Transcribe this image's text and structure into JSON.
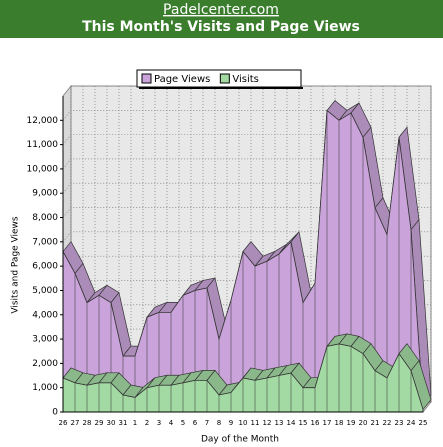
{
  "header": {
    "site": "Padelcenter.com"
  },
  "chart_data": {
    "type": "area3d",
    "title": "This Month's Visits and Page Views",
    "x_label": "Day of the Month",
    "y_label": "Visits and Page Views",
    "categories": [
      "26",
      "27",
      "28",
      "29",
      "30",
      "31",
      "1",
      "2",
      "3",
      "4",
      "5",
      "6",
      "7",
      "8",
      "9",
      "10",
      "11",
      "12",
      "13",
      "14",
      "15",
      "16",
      "17",
      "18",
      "19",
      "20",
      "21",
      "22",
      "23",
      "24",
      "25"
    ],
    "series": [
      {
        "name": "Page Views",
        "color": "#c9a3d9",
        "values": [
          6600,
          5700,
          4500,
          4800,
          4500,
          2300,
          2300,
          3900,
          4100,
          4100,
          4800,
          5000,
          5100,
          3000,
          4600,
          6600,
          6000,
          6200,
          6500,
          7000,
          4500,
          5300,
          12400,
          12000,
          12300,
          11300,
          8400,
          7300,
          11300,
          7500,
          300
        ]
      },
      {
        "name": "Visits",
        "color": "#a3d9a3",
        "values": [
          1400,
          1200,
          1100,
          1200,
          1200,
          700,
          600,
          1000,
          1100,
          1100,
          1200,
          1300,
          1300,
          700,
          800,
          1400,
          1300,
          1400,
          1500,
          1600,
          1000,
          1000,
          2700,
          2800,
          2700,
          2400,
          1700,
          1400,
          2400,
          1700,
          100
        ]
      }
    ],
    "ylim": [
      0,
      13000
    ],
    "yticks": [
      0,
      {
        "value": 1000,
        "label": "1,000"
      },
      {
        "value": 2000,
        "label": "2,000"
      },
      {
        "value": 3000,
        "label": "3,000"
      },
      {
        "value": 4000,
        "label": "4,000"
      },
      {
        "value": 5000,
        "label": "5,000"
      },
      {
        "value": 6000,
        "label": "6,000"
      },
      {
        "value": 7000,
        "label": "7,000"
      },
      {
        "value": 8000,
        "label": "8,000"
      },
      {
        "value": 9000,
        "label": "9,000"
      },
      {
        "value": 10000,
        "label": "10,000"
      },
      {
        "value": 11000,
        "label": "11,000"
      },
      {
        "value": 12000,
        "label": "12,000"
      }
    ],
    "grid": true,
    "legend": "top"
  }
}
